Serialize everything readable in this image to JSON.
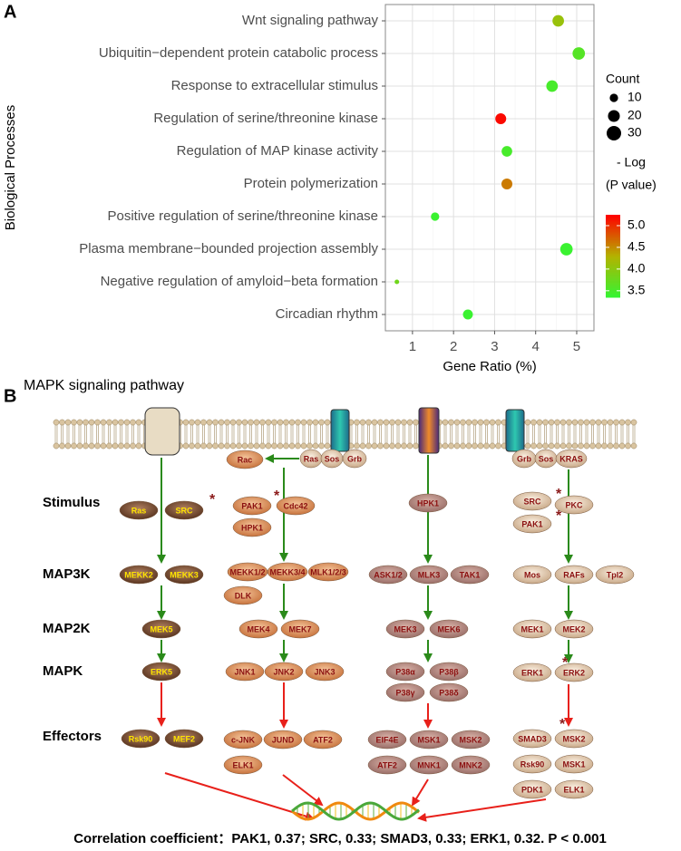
{
  "chart_data": {
    "type": "bubble",
    "panel_label": "A",
    "x_label": "Gene Ratio (%)",
    "y_label": "Biological Processes",
    "categories": [
      "Wnt signaling pathway",
      "Ubiquitin−dependent protein catabolic process",
      "Response to extracellular stimulus",
      "Regulation of serine/threonine kinase",
      "Regulation of MAP kinase activity",
      "Protein polymerization",
      "Positive regulation of serine/threonine kinase",
      "Plasma membrane−bounded projection assembly",
      "Negative regulation of amyloid−beta formation",
      "Circadian rhythm"
    ],
    "values": [
      4.55,
      5.05,
      4.4,
      3.15,
      3.3,
      3.3,
      1.55,
      4.75,
      0.62,
      2.35
    ],
    "sizes": [
      19,
      22,
      19,
      17,
      16,
      17,
      10,
      22,
      3,
      14
    ],
    "neg_log_p": [
      4.1,
      3.6,
      3.5,
      5.2,
      3.5,
      4.6,
      3.4,
      3.4,
      3.8,
      3.4
    ],
    "xlim": [
      0.34,
      5.42
    ],
    "xticks": [
      1,
      2,
      3,
      4,
      5
    ],
    "grid": true,
    "size_legend": {
      "title": "Count",
      "values": [
        10,
        20,
        30
      ]
    },
    "color_legend": {
      "title": [
        "- Log",
        "(P value)"
      ],
      "range": [
        3.35,
        5.25
      ],
      "ticks": [
        3.5,
        {
          "value": 4,
          "label": "4.0"
        },
        4.5,
        {
          "value": 5,
          "label": "5.0"
        }
      ],
      "colors": [
        "#33f533",
        "#b3b300",
        "#ff0000"
      ]
    }
  },
  "diagram": {
    "panel_label": "B",
    "title": "MAPK signaling pathway",
    "levels": [
      "Stimulus",
      "MAP3K",
      "MAP2K",
      "MAPK",
      "Effectors"
    ],
    "membrane": [
      "Rac",
      "Ras",
      "Sos",
      "Grb",
      "Grb",
      "Sos",
      "KRAS"
    ],
    "columns": [
      [
        "Ras",
        "SRC",
        "MEKK2",
        "MEKK3",
        "MEK5",
        "ERK5",
        "Rsk90",
        "MEF2"
      ],
      [
        "PAK1",
        "Cdc42",
        "HPK1",
        "MEKK1/2",
        "MEKK3/4",
        "MLK1/2/3",
        "DLK",
        "MEK4",
        "MEK7",
        "JNK1",
        "JNK2",
        "JNK3",
        "c-JNK",
        "JUND",
        "ATF2",
        "ELK1"
      ],
      [
        "HPK1",
        "ASK1/2",
        "MLK3",
        "TAK1",
        "MEK3",
        "MEK6",
        "P38α",
        "P38β",
        "P38γ",
        "P38δ",
        "EIF4E",
        "MSK1",
        "MSK2",
        "ATF2",
        "MNK1",
        "MNK2"
      ],
      [
        "SRC",
        "PKC",
        "PAK1",
        "Mos",
        "RAFs",
        "Tpl2",
        "MEK1",
        "MEK2",
        "ERK1",
        "ERK2",
        "SMAD3",
        "MSK2",
        "Rsk90",
        "MSK1",
        "PDK1",
        "ELK1"
      ]
    ],
    "star": "*",
    "footer": "Correlation coefficient：PAK1, 0.37;  SRC, 0.33;  SMAD3, 0.33;  ERK1, 0.32. P < 0.001"
  }
}
